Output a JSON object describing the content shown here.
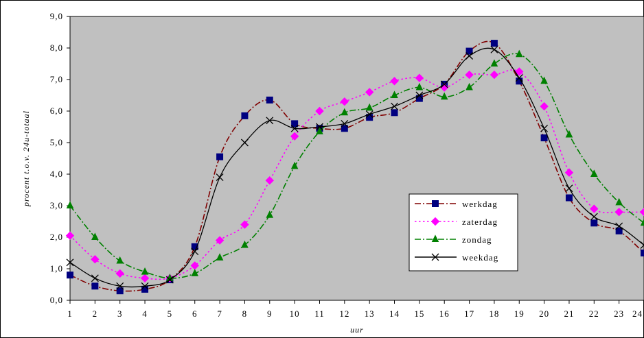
{
  "chart_data": {
    "type": "line",
    "title": "",
    "xlabel": "uur",
    "ylabel": "procent t.o.v. 24u-totaal",
    "categories": [
      "1",
      "2",
      "3",
      "4",
      "5",
      "6",
      "7",
      "8",
      "9",
      "10",
      "11",
      "12",
      "13",
      "14",
      "15",
      "16",
      "17",
      "18",
      "19",
      "20",
      "21",
      "22",
      "23",
      "24"
    ],
    "ylim": [
      0,
      9
    ],
    "yticks": [
      "0,0",
      "1,0",
      "2,0",
      "3,0",
      "4,0",
      "5,0",
      "6,0",
      "7,0",
      "8,0",
      "9,0"
    ],
    "grid": false,
    "plot_background": "#C0C0C0",
    "legend_position": "right-center",
    "series": [
      {
        "name": "werkdag",
        "color": "#000080",
        "line_color": "#800000",
        "marker": "square",
        "dash": "dash-dot",
        "values": [
          0.8,
          0.45,
          0.3,
          0.35,
          0.65,
          1.7,
          4.55,
          5.85,
          6.35,
          5.6,
          5.45,
          5.45,
          5.8,
          5.95,
          6.4,
          6.85,
          7.9,
          8.15,
          6.95,
          5.15,
          3.25,
          2.45,
          2.2,
          1.5
        ]
      },
      {
        "name": "zaterdag",
        "color": "#FF00FF",
        "line_color": "#FF00FF",
        "marker": "diamond",
        "dash": "dot",
        "values": [
          2.05,
          1.3,
          0.85,
          0.7,
          0.7,
          1.1,
          1.9,
          2.4,
          3.8,
          5.2,
          6.0,
          6.3,
          6.6,
          6.95,
          7.05,
          6.75,
          7.15,
          7.15,
          7.25,
          6.15,
          4.05,
          2.9,
          2.8,
          2.8
        ]
      },
      {
        "name": "zondag",
        "color": "#008000",
        "line_color": "#008000",
        "marker": "triangle",
        "dash": "dash-dot",
        "values": [
          3.0,
          2.0,
          1.25,
          0.9,
          0.7,
          0.85,
          1.35,
          1.75,
          2.7,
          4.25,
          5.35,
          5.95,
          6.1,
          6.5,
          6.75,
          6.45,
          6.75,
          7.5,
          7.8,
          6.95,
          5.25,
          4.0,
          3.1,
          2.45
        ]
      },
      {
        "name": "weekdag",
        "color": "#000000",
        "line_color": "#000000",
        "marker": "x",
        "dash": "solid",
        "values": [
          1.2,
          0.7,
          0.45,
          0.45,
          0.65,
          1.55,
          3.9,
          5.0,
          5.7,
          5.45,
          5.5,
          5.6,
          5.9,
          6.15,
          6.5,
          6.85,
          7.75,
          7.95,
          7.05,
          5.45,
          3.55,
          2.65,
          2.35,
          1.75
        ]
      }
    ]
  }
}
